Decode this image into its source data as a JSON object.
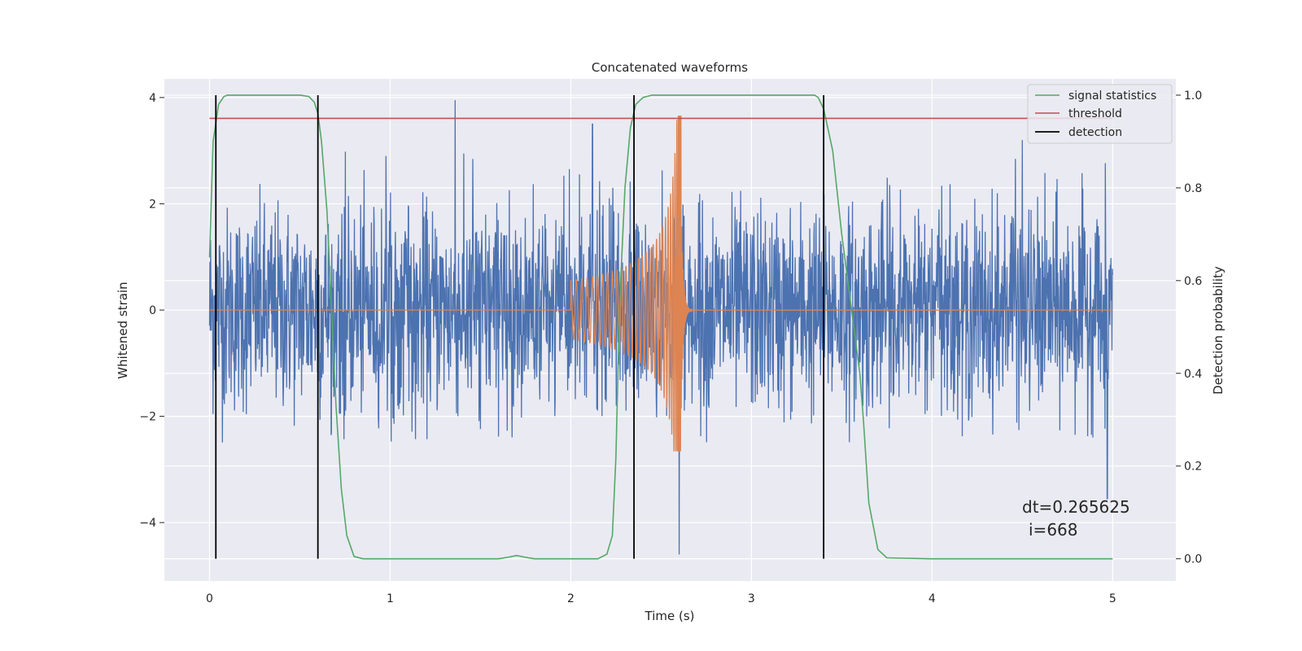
{
  "chart_data": {
    "type": "line",
    "title": "Concatenated waveforms",
    "xlabel": "Time (s)",
    "ylabel": "Whitened strain",
    "y2label": "Detection probability",
    "xlim": [
      -0.25,
      5.35
    ],
    "ylim": [
      -5.1,
      4.35
    ],
    "y2lim": [
      -0.048,
      1.035
    ],
    "xticks": [
      "0",
      "1",
      "2",
      "3",
      "4",
      "5"
    ],
    "xtick_values": [
      0,
      1,
      2,
      3,
      4,
      5
    ],
    "yticks": [
      "−4",
      "−2",
      "0",
      "2",
      "4"
    ],
    "ytick_values": [
      -4,
      -2,
      0,
      2,
      4
    ],
    "y2ticks": [
      "0.0",
      "0.2",
      "0.4",
      "0.6",
      "0.8",
      "1.0"
    ],
    "y2tick_values": [
      0.0,
      0.2,
      0.4,
      0.6,
      0.8,
      1.0
    ],
    "grid": true,
    "legend_position": "top-right",
    "series": [
      {
        "name": "",
        "axis": "left",
        "color": "#4c72b0",
        "style": "noise",
        "x_range": [
          0,
          5
        ],
        "typical_range": [
          -2.5,
          3.0
        ],
        "peak_values": [
          [
            1.36,
            3.95
          ],
          [
            2.6,
            -4.6
          ],
          [
            2.12,
            3.5
          ],
          [
            4.5,
            3.2
          ],
          [
            4.97,
            -3.55
          ]
        ]
      },
      {
        "name": "",
        "axis": "left",
        "color": "#dd8452",
        "style": "chirp",
        "x_range": [
          0,
          5
        ],
        "chirp_start": 2.0,
        "merger": 2.61,
        "ringdown_end": 2.7,
        "start_amplitude": 0.55,
        "peak_positive": 3.65,
        "peak_negative": -2.65
      },
      {
        "name": "signal statistics",
        "axis": "right",
        "color": "#55a868",
        "x": [
          0,
          0.02,
          0.05,
          0.08,
          0.1,
          0.15,
          0.5,
          0.55,
          0.58,
          0.6,
          0.62,
          0.65,
          0.68,
          0.7,
          0.73,
          0.76,
          0.8,
          0.85,
          1.0,
          1.6,
          1.65,
          1.7,
          1.75,
          1.8,
          2.0,
          2.15,
          2.2,
          2.23,
          2.25,
          2.27,
          2.3,
          2.33,
          2.36,
          2.4,
          2.45,
          3.35,
          3.37,
          3.4,
          3.45,
          3.5,
          3.55,
          3.6,
          3.62,
          3.65,
          3.7,
          3.75,
          4.0,
          5.0
        ],
        "y": [
          0.65,
          0.9,
          0.98,
          0.997,
          1.0,
          1.0,
          1.0,
          0.997,
          0.985,
          0.96,
          0.9,
          0.75,
          0.5,
          0.33,
          0.15,
          0.05,
          0.005,
          0.0,
          0.0,
          0.0,
          0.003,
          0.007,
          0.003,
          0.0,
          0.0,
          0.0,
          0.01,
          0.05,
          0.22,
          0.55,
          0.8,
          0.93,
          0.98,
          0.995,
          1.0,
          1.0,
          0.995,
          0.97,
          0.88,
          0.7,
          0.55,
          0.4,
          0.3,
          0.12,
          0.02,
          0.002,
          0.0,
          0.0
        ]
      },
      {
        "name": "threshold",
        "axis": "right",
        "color": "#c44e52",
        "x": [
          0,
          5
        ],
        "y": [
          0.95,
          0.95
        ]
      },
      {
        "name": "detection",
        "axis": "right",
        "color": "#000000",
        "style": "vlines",
        "x": [
          0.035,
          0.6,
          2.35,
          3.4
        ],
        "ymin": 0.0,
        "ymax": 1.0
      }
    ],
    "annotations": [
      "dt=0.265625",
      "i=668"
    ]
  }
}
